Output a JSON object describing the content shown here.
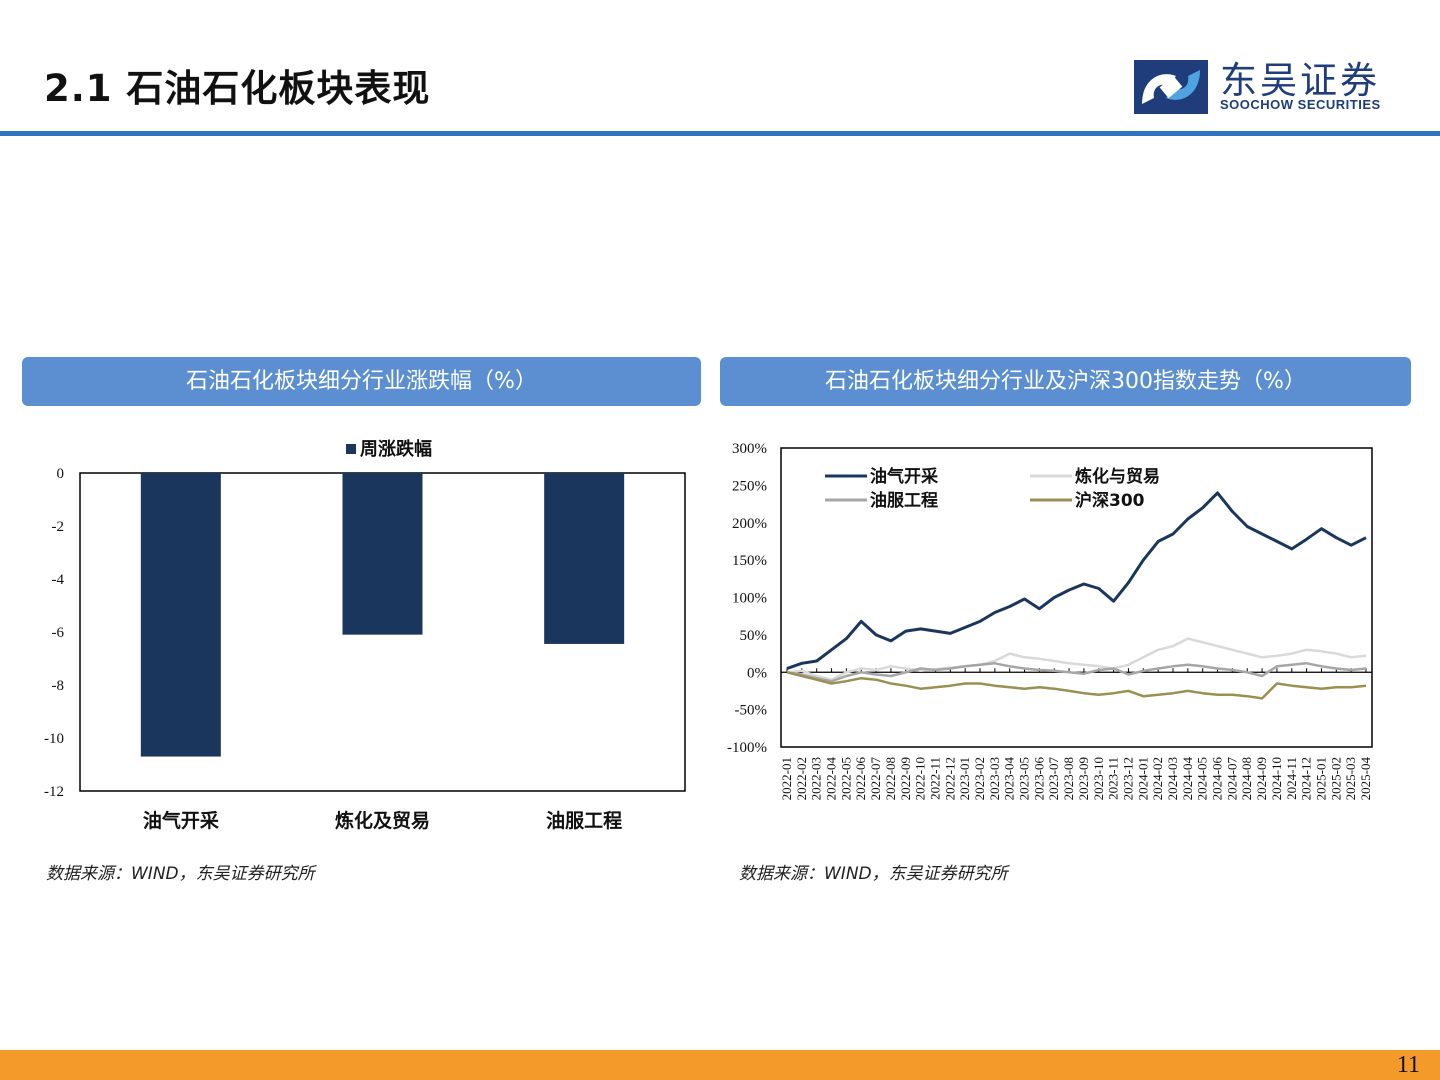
{
  "header": {
    "title": "2.1 石油石化板块表现",
    "logo_cn": "东吴证券",
    "logo_en": "SOOCHOW SECURITIES"
  },
  "panels": [
    {
      "title": "石油石化板块细分行业涨跌幅（%）",
      "source": "数据来源：WIND，东吴证券研究所"
    },
    {
      "title": "石油石化板块细分行业及沪深300指数走势（%）",
      "source": "数据来源：WIND，东吴证券研究所"
    }
  ],
  "page_number": "11",
  "colors": {
    "rule": "#2f74c0",
    "panel_header": "#5b8fd1",
    "footer": "#f39a2b",
    "bar": "#1b365d",
    "oil_gas": "#1b365d",
    "refining": "#d9d9d9",
    "oil_service": "#a6a6a6",
    "csi300": "#9c8f52"
  },
  "chart_data": [
    {
      "type": "bar",
      "legend": [
        "周涨跌幅"
      ],
      "categories": [
        "油气开采",
        "炼化及贸易",
        "油服工程"
      ],
      "series": [
        {
          "name": "周涨跌幅",
          "values": [
            -10.7,
            -6.1,
            -6.45
          ]
        }
      ],
      "ylim": [
        -12,
        0
      ],
      "yticks": [
        "0",
        "-2",
        "-4",
        "-6",
        "-8",
        "-10",
        "-12"
      ],
      "ytick_values": [
        0,
        -2,
        -4,
        -6,
        -8,
        -10,
        -12
      ]
    },
    {
      "type": "line",
      "ylim": [
        -100,
        300
      ],
      "yticks": [
        "300%",
        "250%",
        "200%",
        "150%",
        "100%",
        "50%",
        "0%",
        "-50%",
        "-100%"
      ],
      "ytick_values": [
        300,
        250,
        200,
        150,
        100,
        50,
        0,
        -50,
        -100
      ],
      "x": [
        "2022-01",
        "2022-02",
        "2022-03",
        "2022-04",
        "2022-05",
        "2022-06",
        "2022-07",
        "2022-08",
        "2022-09",
        "2022-10",
        "2022-11",
        "2022-12",
        "2023-01",
        "2023-02",
        "2023-03",
        "2023-04",
        "2023-05",
        "2023-06",
        "2023-07",
        "2023-08",
        "2023-09",
        "2023-10",
        "2023-11",
        "2023-12",
        "2024-01",
        "2024-02",
        "2024-03",
        "2024-04",
        "2024-05",
        "2024-06",
        "2024-07",
        "2024-08",
        "2024-09",
        "2024-10",
        "2024-11",
        "2024-12",
        "2025-01",
        "2025-02",
        "2025-03",
        "2025-04"
      ],
      "series": [
        {
          "name": "油气开采",
          "values": [
            5,
            12,
            15,
            30,
            45,
            68,
            50,
            42,
            55,
            58,
            55,
            52,
            60,
            68,
            80,
            88,
            98,
            85,
            100,
            110,
            118,
            112,
            95,
            120,
            150,
            175,
            185,
            205,
            220,
            240,
            215,
            195,
            185,
            175,
            165,
            178,
            192,
            180,
            170,
            180
          ]
        },
        {
          "name": "炼化与贸易",
          "values": [
            0,
            2,
            -5,
            -10,
            0,
            5,
            3,
            8,
            5,
            2,
            4,
            6,
            8,
            10,
            15,
            25,
            20,
            18,
            15,
            12,
            10,
            8,
            5,
            10,
            20,
            30,
            35,
            45,
            40,
            35,
            30,
            25,
            20,
            22,
            25,
            30,
            28,
            25,
            20,
            22
          ]
        },
        {
          "name": "油服工程",
          "values": [
            0,
            -3,
            -8,
            -12,
            -5,
            0,
            -3,
            -5,
            0,
            5,
            3,
            5,
            8,
            10,
            12,
            8,
            5,
            3,
            2,
            0,
            -2,
            3,
            5,
            -3,
            2,
            5,
            8,
            10,
            8,
            5,
            3,
            0,
            -5,
            8,
            10,
            12,
            8,
            5,
            3,
            5
          ]
        },
        {
          "name": "沪深300",
          "values": [
            0,
            -5,
            -10,
            -15,
            -12,
            -8,
            -10,
            -15,
            -18,
            -22,
            -20,
            -18,
            -15,
            -15,
            -18,
            -20,
            -22,
            -20,
            -22,
            -25,
            -28,
            -30,
            -28,
            -25,
            -32,
            -30,
            -28,
            -25,
            -28,
            -30,
            -30,
            -32,
            -35,
            -15,
            -18,
            -20,
            -22,
            -20,
            -20,
            -18
          ]
        }
      ]
    }
  ]
}
